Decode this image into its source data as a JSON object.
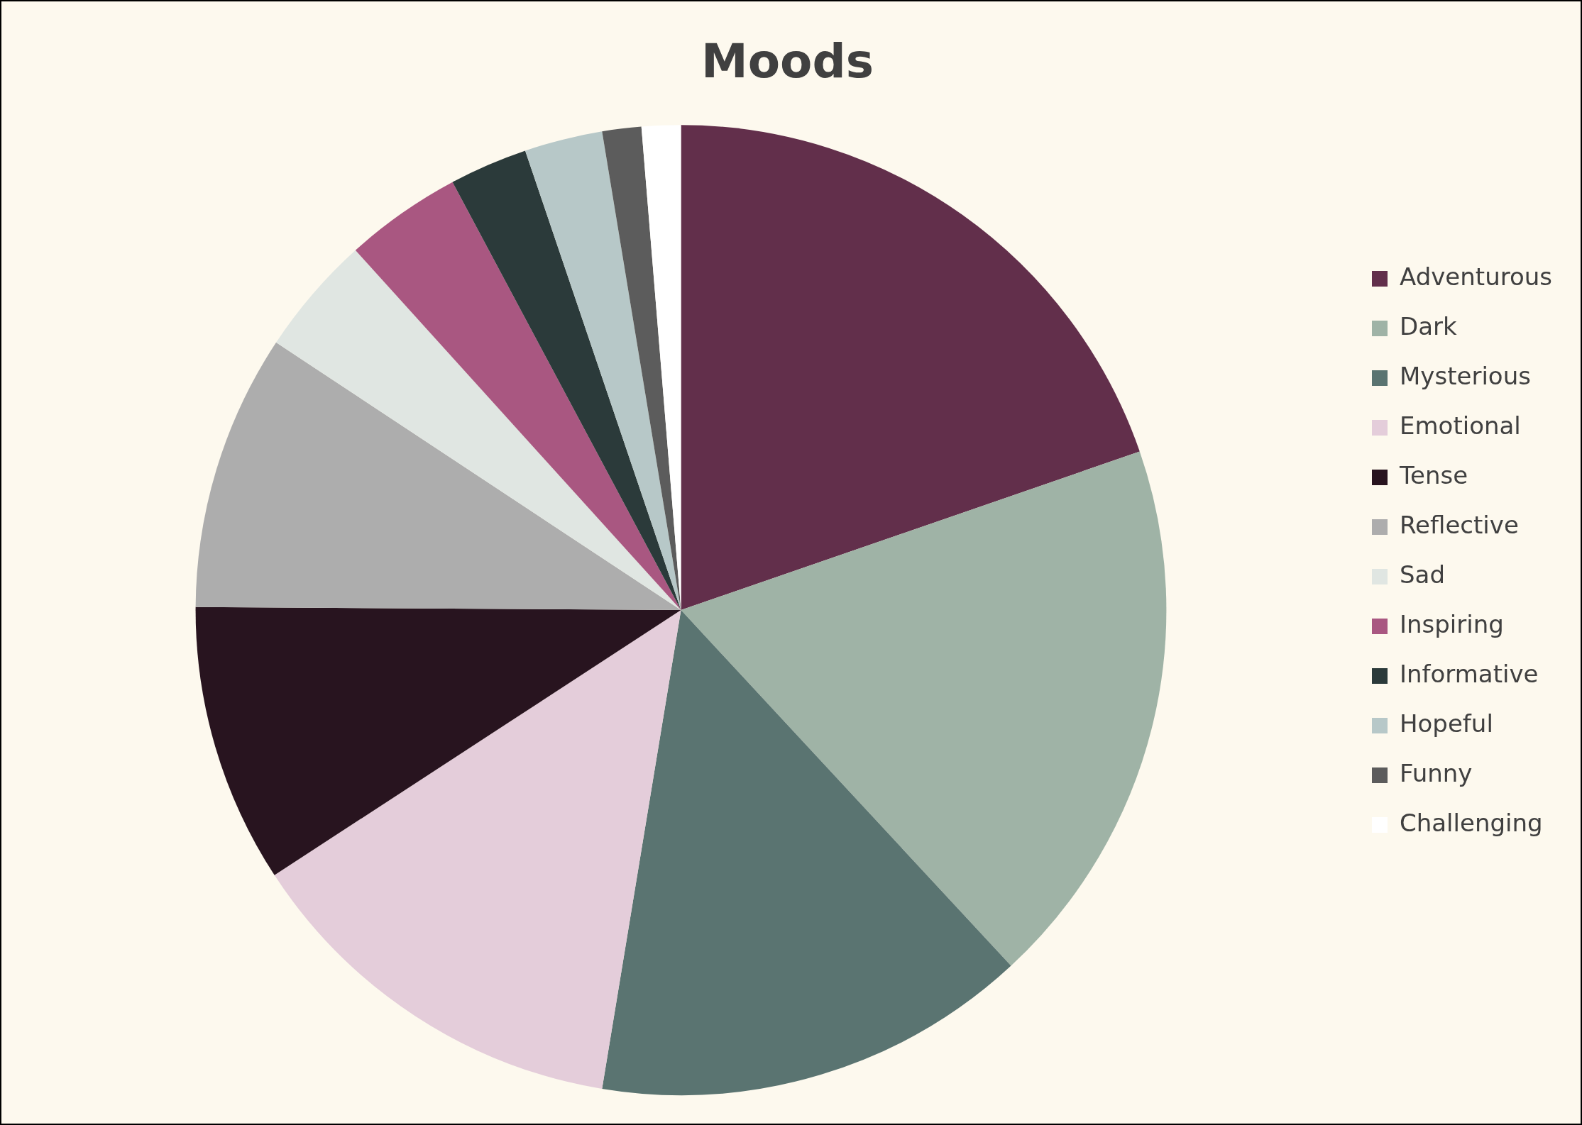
{
  "chart_data": {
    "type": "pie",
    "title": "Moods",
    "categories": [
      "Adventurous",
      "Dark",
      "Mysterious",
      "Emotional",
      "Tense",
      "Reflective",
      "Sad",
      "Inspiring",
      "Informative",
      "Hopeful",
      "Funny",
      "Challenging"
    ],
    "values": [
      19.7,
      18.4,
      14.5,
      13.2,
      9.3,
      9.2,
      4.0,
      3.9,
      2.6,
      2.6,
      1.3,
      1.3
    ],
    "colors": [
      "#622f4b",
      "#9fb3a6",
      "#5a7471",
      "#e4cdda",
      "#28141f",
      "#adadad",
      "#e0e6e2",
      "#a95781",
      "#2b3a3a",
      "#b7c8c8",
      "#5c5c5c",
      "#ffffff"
    ],
    "legend": "right"
  }
}
